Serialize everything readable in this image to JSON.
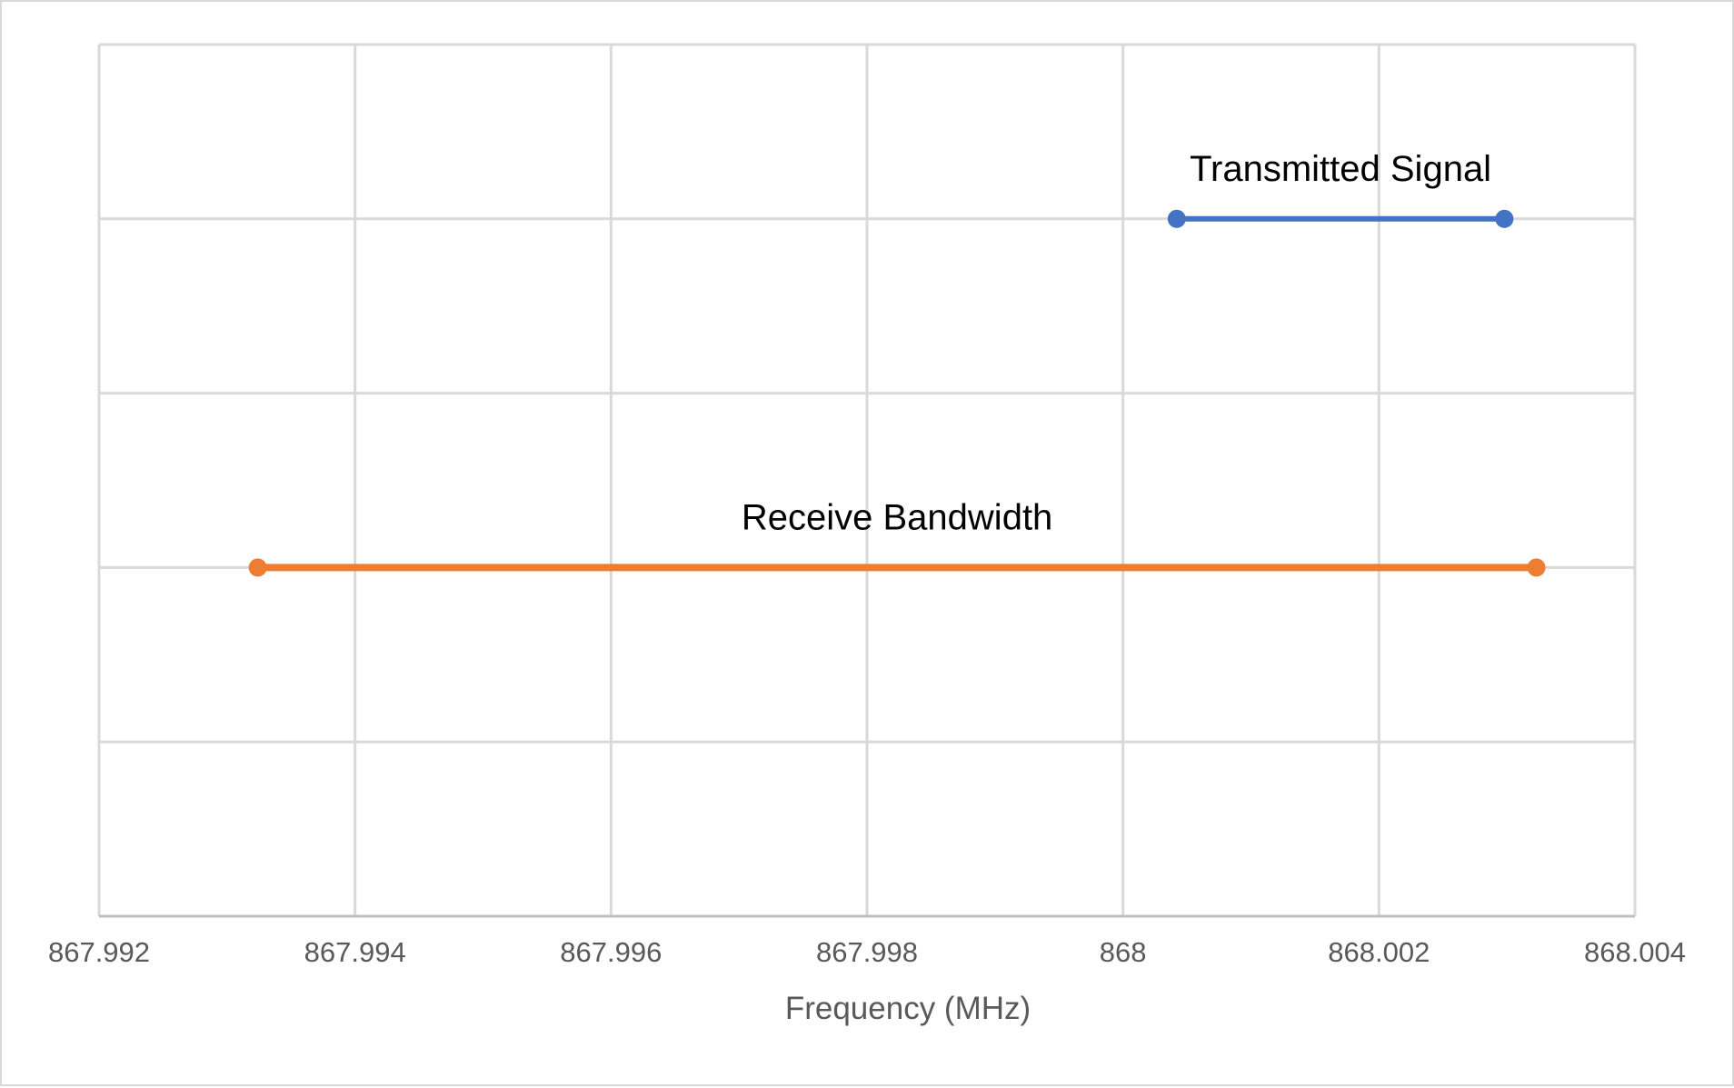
{
  "chart_data": {
    "type": "line",
    "xlabel": "Frequency (MHz)",
    "ylabel": "",
    "xlim": [
      867.992,
      868.004
    ],
    "ylim": [
      0,
      5
    ],
    "x_ticks": [
      "867.992",
      "867.994",
      "867.996",
      "867.998",
      "868",
      "868.002",
      "868.004"
    ],
    "y_grid": [
      0,
      1,
      2,
      3,
      4,
      5
    ],
    "grid": true,
    "legend": "none",
    "series": [
      {
        "name": "Transmitted Signal",
        "color": "#4472C4",
        "x": [
          868.00042,
          868.00298
        ],
        "y": [
          4,
          4
        ]
      },
      {
        "name": "Receive Bandwidth",
        "color": "#ED7D31",
        "x": [
          867.99324,
          868.00323
        ],
        "y": [
          2,
          2
        ]
      }
    ]
  }
}
